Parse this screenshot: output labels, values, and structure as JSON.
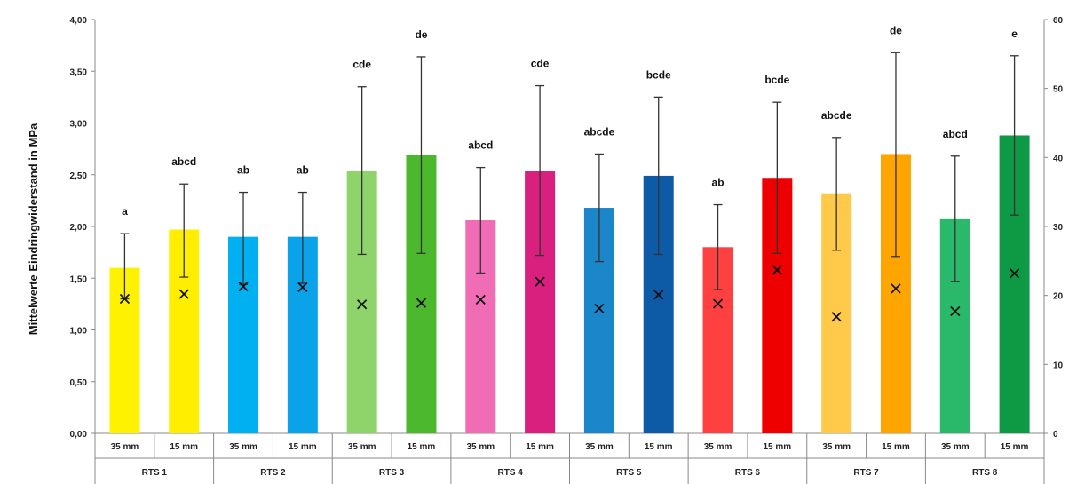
{
  "chart_data": {
    "type": "bar",
    "ylabel": "Mittelwerte Eindringwiderstand in MPa",
    "y_left_ticks": [
      "0,00",
      "0,50",
      "1,00",
      "1,50",
      "2,00",
      "2,50",
      "3,00",
      "3,50",
      "4,00"
    ],
    "ylim_left": [
      0,
      4
    ],
    "y_right_ticks": [
      "0",
      "10",
      "20",
      "30",
      "40",
      "50",
      "60"
    ],
    "ylim_right": [
      0,
      60
    ],
    "grid": false,
    "groups": [
      "RTS 1",
      "RTS 2",
      "RTS 3",
      "RTS 4",
      "RTS 5",
      "RTS 6",
      "RTS 7",
      "RTS 8"
    ],
    "categories": [
      "35 mm",
      "15 mm",
      "35 mm",
      "15 mm",
      "35 mm",
      "15 mm",
      "35 mm",
      "15 mm",
      "35 mm",
      "15 mm",
      "35 mm",
      "15 mm",
      "35 mm",
      "15 mm",
      "35 mm",
      "15 mm"
    ],
    "values": [
      1.6,
      1.97,
      1.9,
      1.9,
      2.54,
      2.69,
      2.06,
      2.54,
      2.18,
      2.49,
      1.8,
      2.47,
      2.32,
      2.7,
      2.07,
      2.88
    ],
    "error_low": [
      1.3,
      1.51,
      1.44,
      1.45,
      1.73,
      1.74,
      1.55,
      1.72,
      1.66,
      1.73,
      1.39,
      1.74,
      1.77,
      1.71,
      1.47,
      2.11
    ],
    "error_high": [
      1.93,
      2.41,
      2.33,
      2.33,
      3.35,
      3.64,
      2.57,
      3.36,
      2.7,
      3.25,
      2.21,
      3.2,
      2.86,
      3.68,
      2.68,
      3.65
    ],
    "markers_right_axis": [
      19.5,
      20.2,
      21.3,
      21.2,
      18.7,
      18.9,
      19.4,
      22.0,
      18.1,
      20.1,
      18.8,
      23.7,
      16.9,
      21.0,
      17.7,
      23.2
    ],
    "significance": [
      "a",
      "abcd",
      "ab",
      "ab",
      "cde",
      "de",
      "abcd",
      "cde",
      "abcde",
      "bcde",
      "ab",
      "bcde",
      "abcde",
      "de",
      "abcd",
      "e"
    ],
    "colors": [
      "#fff200",
      "#ffee00",
      "#00b0f0",
      "#0aa2e8",
      "#8fd36b",
      "#4cb82e",
      "#f06db5",
      "#d9207f",
      "#1b86c9",
      "#0d5aa7",
      "#ff4040",
      "#ee0000",
      "#ffc94a",
      "#ffa500",
      "#2ab86a",
      "#0e9a45"
    ]
  }
}
